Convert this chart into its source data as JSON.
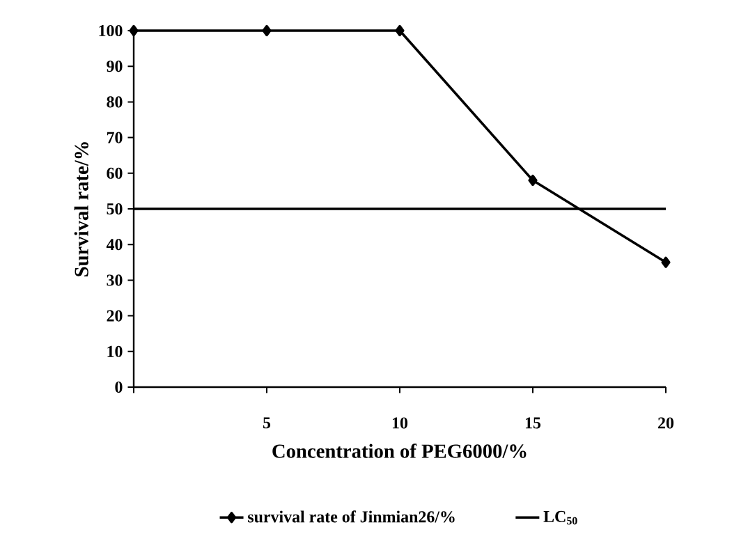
{
  "chart_data": {
    "type": "line",
    "xlabel": "Concentration of PEG6000/%",
    "ylabel": "Survival rate/%",
    "x": [
      0,
      5,
      10,
      15,
      20
    ],
    "series": [
      {
        "name": "survival rate of Jinmian26/%",
        "color": "#000000",
        "values": [
          100,
          100,
          100,
          58,
          35
        ],
        "marker": "diamond"
      },
      {
        "name": "LC$_{50}$",
        "color": "#000000",
        "x": [
          0,
          20
        ],
        "values": [
          50,
          50
        ],
        "marker": "none"
      }
    ],
    "xlim": [
      0,
      20
    ],
    "xticks": [
      {
        "value": 0,
        "label": null
      },
      5,
      10,
      15,
      20
    ],
    "ylim": [
      0,
      100
    ],
    "yticks": [
      0,
      10,
      20,
      30,
      40,
      50,
      60,
      70,
      80,
      90,
      100
    ],
    "grid": false,
    "legend": "bottom",
    "line_style": "solid"
  }
}
